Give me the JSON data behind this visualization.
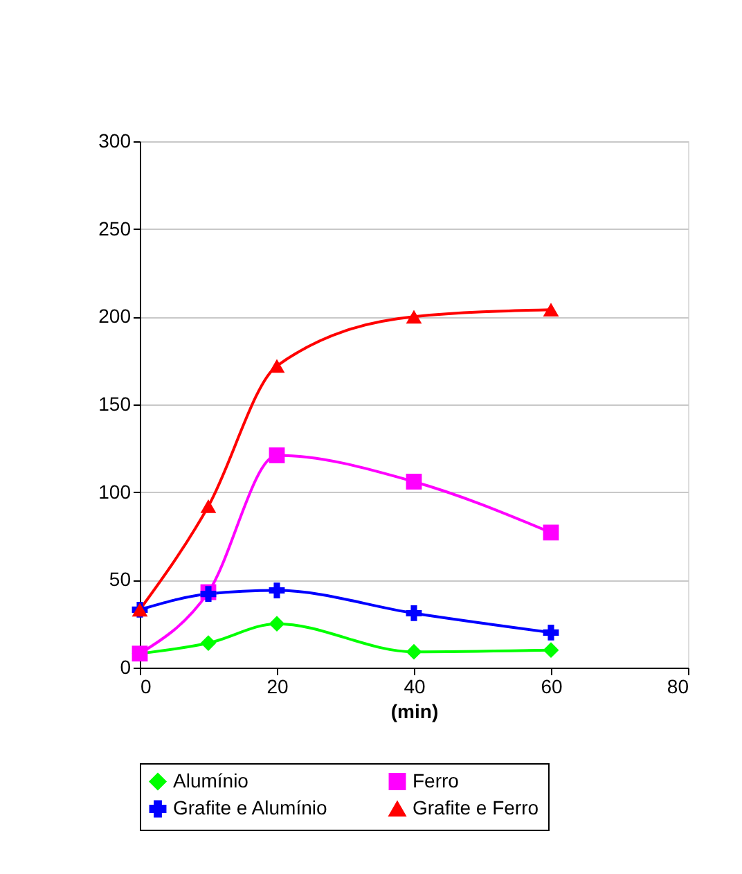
{
  "chart_data": {
    "type": "line",
    "xlabel": "(min)",
    "x": [
      0,
      10,
      20,
      40,
      60
    ],
    "series": [
      {
        "name": "Alumínio",
        "color": "#00ff00",
        "marker": "diamond",
        "values": [
          8,
          14,
          25,
          9,
          10
        ]
      },
      {
        "name": "Ferro",
        "color": "#ff00ff",
        "marker": "square",
        "values": [
          8,
          43,
          121,
          106,
          77
        ]
      },
      {
        "name": "Grafite e Alumínio",
        "color": "#0000ff",
        "marker": "cross",
        "values": [
          33,
          42,
          44,
          31,
          20
        ]
      },
      {
        "name": "Grafite e Ferro",
        "color": "#ff0000",
        "marker": "triangle",
        "values": [
          33,
          92,
          172,
          200,
          204
        ]
      }
    ],
    "xlim": [
      0,
      80
    ],
    "xticks": [
      0,
      20,
      40,
      60,
      80
    ],
    "ylim": [
      0,
      300
    ],
    "yticks": [
      0,
      50,
      100,
      150,
      200,
      250,
      300
    ],
    "grid": "y",
    "legend": "bottom",
    "line_style": "solid"
  }
}
